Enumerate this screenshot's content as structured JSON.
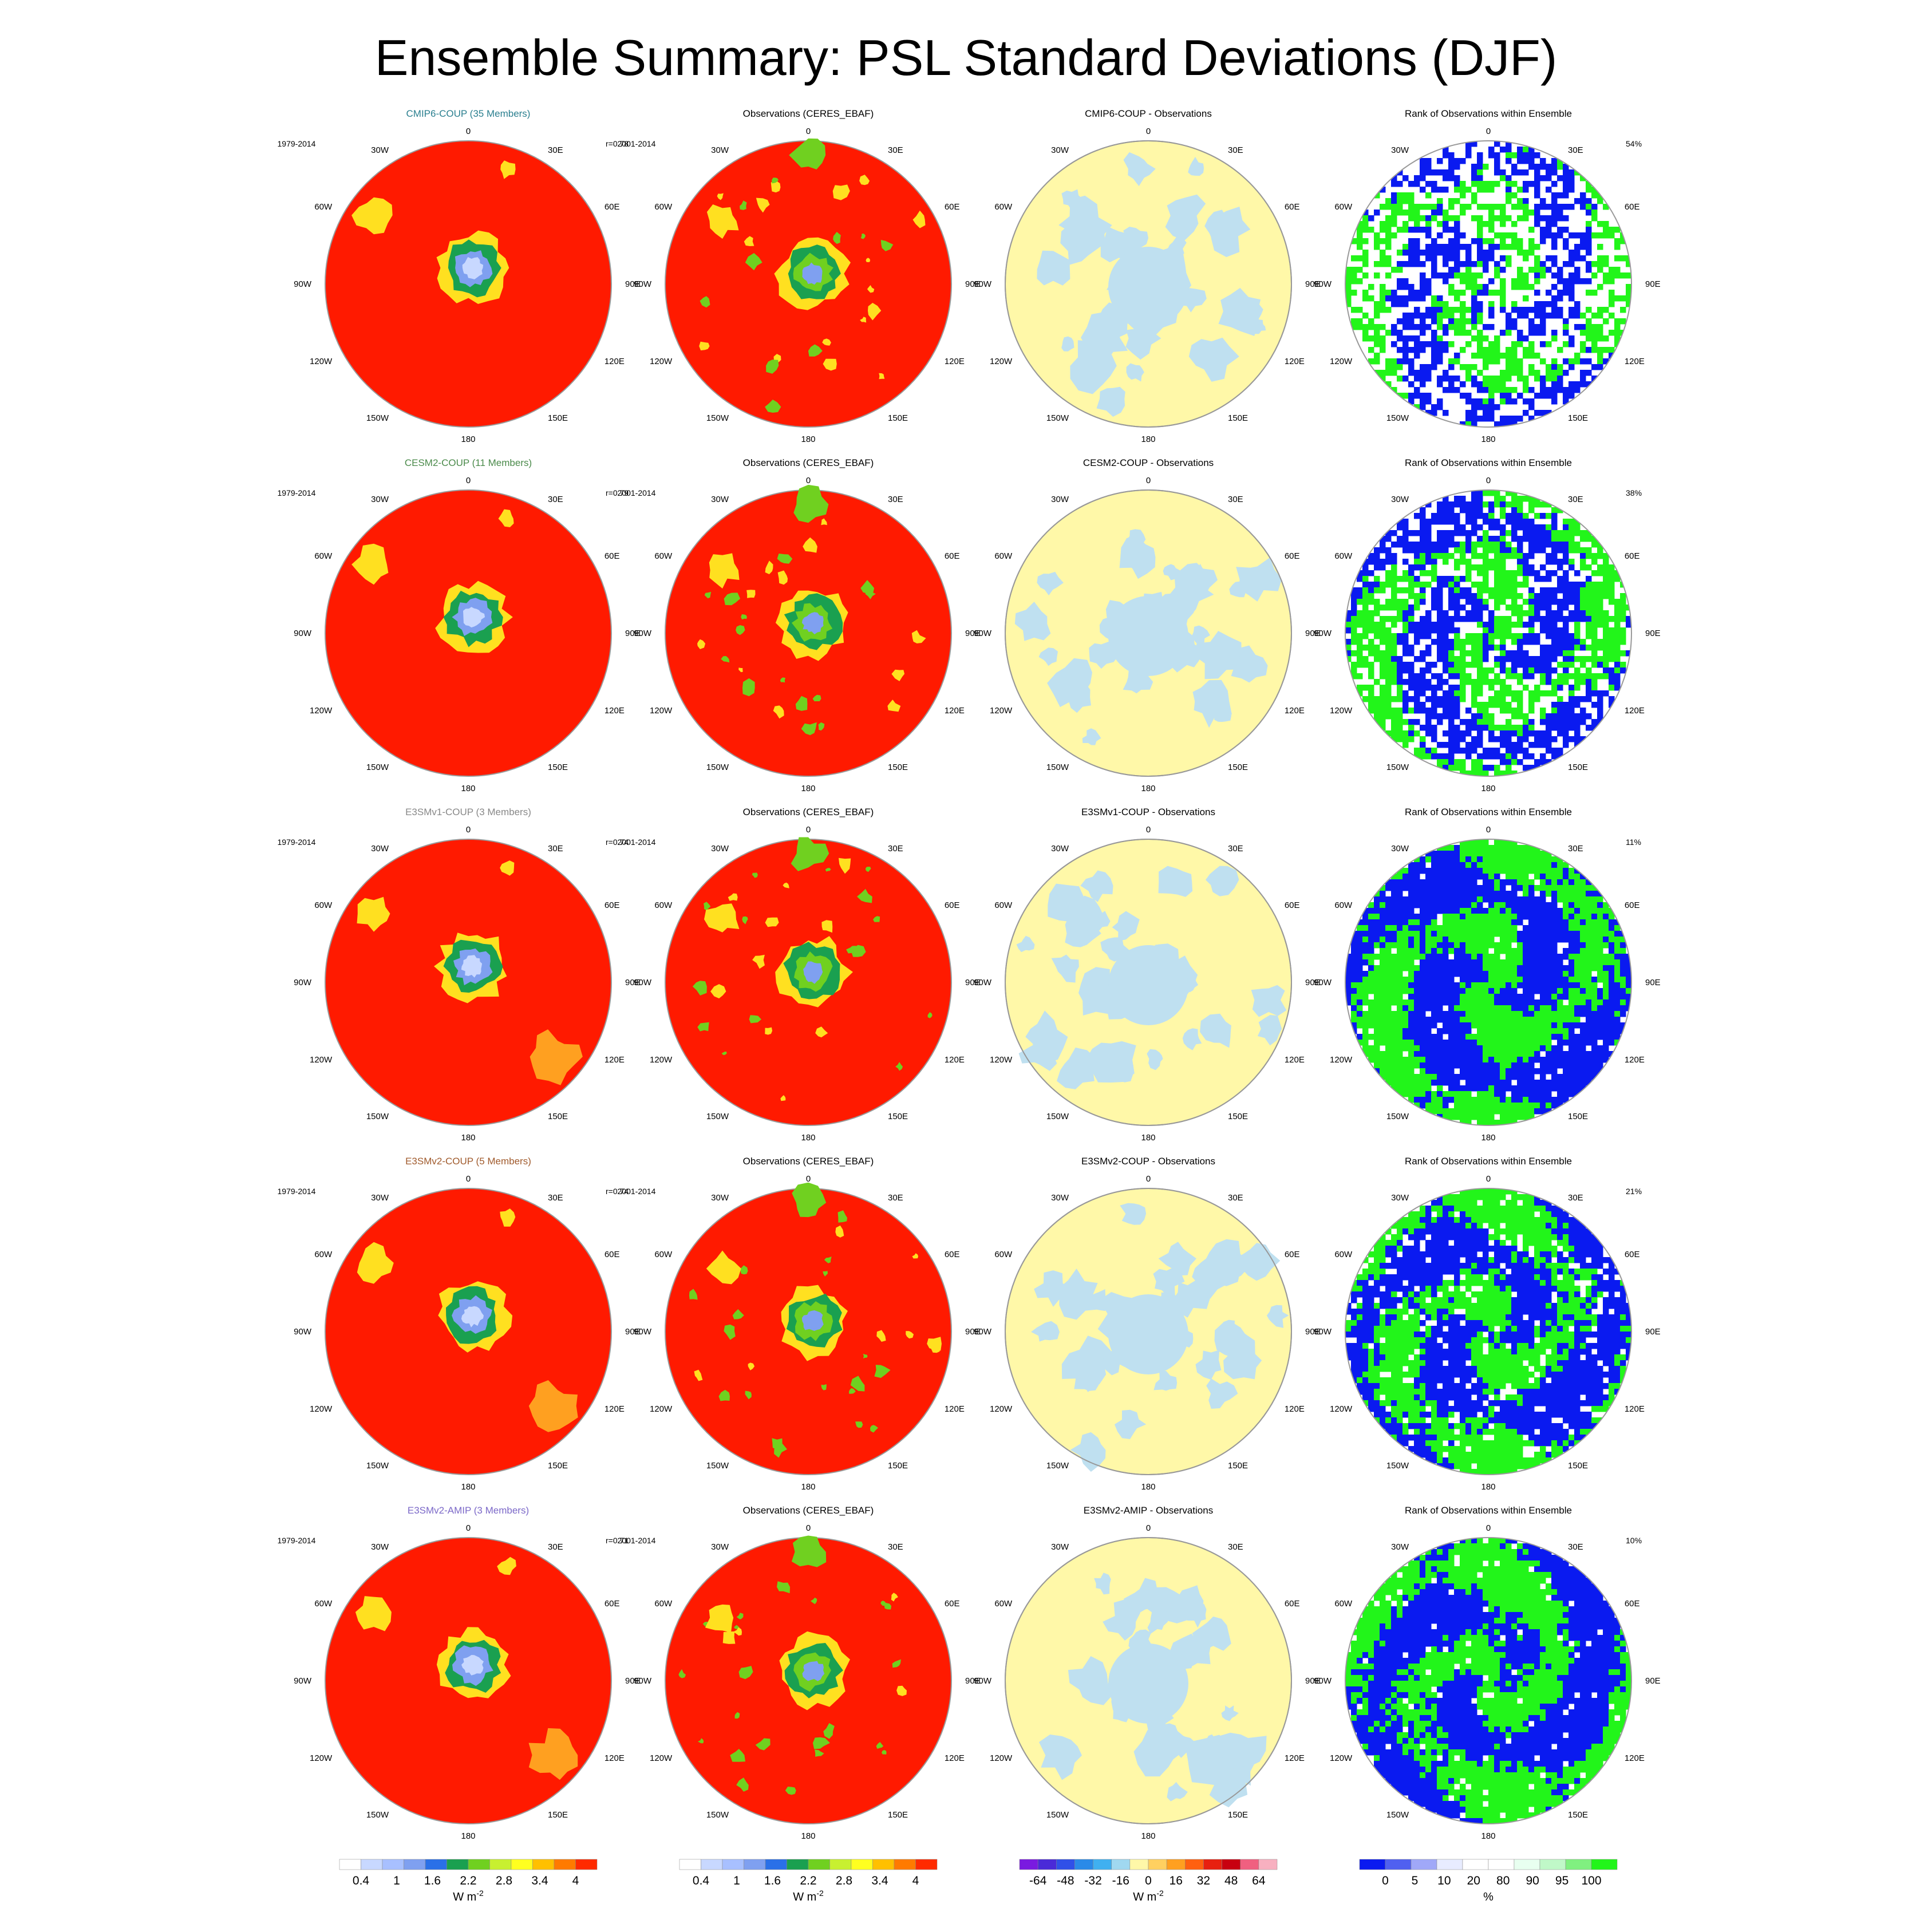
{
  "title": "Ensemble Summary: PSL Standard Deviations (DJF)",
  "column_titles": {
    "observations": "Observations (CERES_EBAF)",
    "rank": "Rank of Observations within Ensemble"
  },
  "rows": [
    {
      "ensemble": "CMIP6-COUP (35 Members)",
      "ensemble_color": "#2a7f8f",
      "model_period": "1979-2014",
      "r": "r=0.78",
      "obs_period": "2001-2014",
      "diff_title": "CMIP6-COUP - Observations",
      "rank_pct": "54%",
      "rank_density": 0.55
    },
    {
      "ensemble": "CESM2-COUP (11 Members)",
      "ensemble_color": "#4a8a4a",
      "model_period": "1979-2014",
      "r": "r=0.79",
      "obs_period": "2001-2014",
      "diff_title": "CESM2-COUP - Observations",
      "rank_pct": "38%",
      "rank_density": 0.72
    },
    {
      "ensemble": "E3SMv1-COUP (3 Members)",
      "ensemble_color": "#888888",
      "model_period": "1979-2014",
      "r": "r=0.74",
      "obs_period": "2001-2014",
      "diff_title": "E3SMv1-COUP - Observations",
      "rank_pct": "11%",
      "rank_density": 0.96
    },
    {
      "ensemble": "E3SMv2-COUP (5 Members)",
      "ensemble_color": "#a05a2c",
      "model_period": "1979-2014",
      "r": "r=0.74",
      "obs_period": "2001-2014",
      "diff_title": "E3SMv2-COUP - Observations",
      "rank_pct": "21%",
      "rank_density": 0.9
    },
    {
      "ensemble": "E3SMv2-AMIP (3 Members)",
      "ensemble_color": "#7b68c8",
      "model_period": "1979-2014",
      "r": "r=0.71",
      "obs_period": "2001-2014",
      "diff_title": "E3SMv2-AMIP - Observations",
      "rank_pct": "10%",
      "rank_density": 0.96
    }
  ],
  "map_labels": {
    "top": "0",
    "bottom": "180",
    "left": [
      "30W",
      "60W",
      "90W",
      "120W",
      "150W"
    ],
    "right": [
      "30E",
      "60E",
      "90E",
      "120E",
      "150E"
    ]
  },
  "colors": {
    "land_red": "#ff1a00",
    "diff_yellow": "#fff8a8",
    "diff_blue": "#bfe0f0",
    "rank_blue": "#0a1af0",
    "rank_green": "#22f51a"
  },
  "colorbars": [
    {
      "unit_base": "W m",
      "unit_exp": "-2",
      "swatches": [
        "#ffffff",
        "#c8d8ff",
        "#a8c0ff",
        "#7fa0f0",
        "#2a70e8",
        "#1aa050",
        "#70d020",
        "#c8f030",
        "#ffff20",
        "#ffc000",
        "#ff7a00",
        "#ff2a00"
      ],
      "ticks": [
        "0.4",
        "1",
        "1.6",
        "2.2",
        "2.8",
        "3.4",
        "4"
      ]
    },
    {
      "unit_base": "W m",
      "unit_exp": "-2",
      "swatches": [
        "#ffffff",
        "#c8d8ff",
        "#a8c0ff",
        "#7fa0f0",
        "#2a70e8",
        "#1aa050",
        "#70d020",
        "#c8f030",
        "#ffff20",
        "#ffc000",
        "#ff7a00",
        "#ff2a00"
      ],
      "ticks": [
        "0.4",
        "1",
        "1.6",
        "2.2",
        "2.8",
        "3.4",
        "4"
      ]
    },
    {
      "unit_base": "W m",
      "unit_exp": "-2",
      "swatches": [
        "#7a1ae0",
        "#4a2ad8",
        "#3050e8",
        "#2a8ae8",
        "#40b0f0",
        "#a0d8f0",
        "#fff8a8",
        "#ffd060",
        "#ffa020",
        "#ff6010",
        "#e82010",
        "#c80010",
        "#f06080",
        "#f8b0c0"
      ],
      "ticks": [
        "-64",
        "-48",
        "-32",
        "-16",
        "0",
        "16",
        "32",
        "48",
        "64"
      ]
    },
    {
      "unit_base": "%",
      "unit_exp": "",
      "swatches": [
        "#0a1af0",
        "#5060f0",
        "#a0a8f8",
        "#e8ecff",
        "#ffffff",
        "#ffffff",
        "#e8fff0",
        "#c0f8c8",
        "#80f080",
        "#22f51a"
      ],
      "ticks": [
        "0",
        "5",
        "10",
        "20",
        "80",
        "90",
        "95",
        "100"
      ]
    }
  ]
}
